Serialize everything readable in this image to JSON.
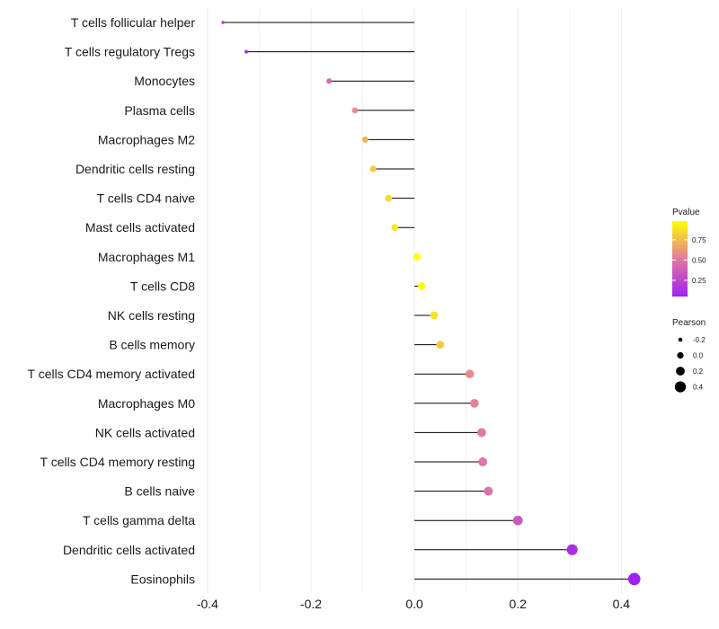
{
  "chart_data": {
    "type": "lollipop",
    "categories": [
      "T cells follicular helper",
      "T cells regulatory  Tregs",
      "Monocytes",
      "Plasma cells",
      "Macrophages M2",
      "Dendritic cells resting",
      "T cells CD4 naive",
      "Mast cells activated",
      "Macrophages M1",
      "T cells CD8",
      "NK cells resting",
      "B cells memory",
      "T cells CD4 memory activated",
      "Macrophages M0",
      "NK cells activated",
      "T cells CD4 memory resting",
      "B cells naive",
      "T cells gamma delta",
      "Dendritic cells activated",
      "Eosinophils"
    ],
    "values": [
      -0.37,
      -0.325,
      -0.165,
      -0.115,
      -0.095,
      -0.08,
      -0.05,
      -0.038,
      0.005,
      0.014,
      0.038,
      0.05,
      0.107,
      0.116,
      0.13,
      0.132,
      0.143,
      0.2,
      0.305,
      0.425
    ],
    "pvalues": [
      0.15,
      0.12,
      0.45,
      0.58,
      0.72,
      0.8,
      0.85,
      0.9,
      0.98,
      0.96,
      0.88,
      0.8,
      0.58,
      0.55,
      0.52,
      0.5,
      0.48,
      0.35,
      0.12,
      0.05
    ],
    "xticks": [
      -0.4,
      -0.2,
      0.0,
      0.2,
      0.4
    ],
    "xtick_labels": [
      "-0.4",
      "-0.2",
      "0.0",
      "0.2",
      "0.4"
    ],
    "xlim": [
      -0.405,
      0.455
    ],
    "legend_pvalue": {
      "title": "Pvalue",
      "ticks": [
        0.25,
        0.5,
        0.75
      ],
      "tick_labels": [
        "0.25",
        "0.50",
        "0.75"
      ],
      "range": [
        0.05,
        0.98
      ],
      "colors": [
        "#a020f0",
        "#ffff00"
      ]
    },
    "legend_pearson": {
      "title": "Pearson",
      "values": [
        -0.2,
        0.0,
        0.2,
        0.4
      ],
      "labels": [
        "-0.2",
        "0.0",
        "0.2",
        "0.4"
      ]
    }
  }
}
